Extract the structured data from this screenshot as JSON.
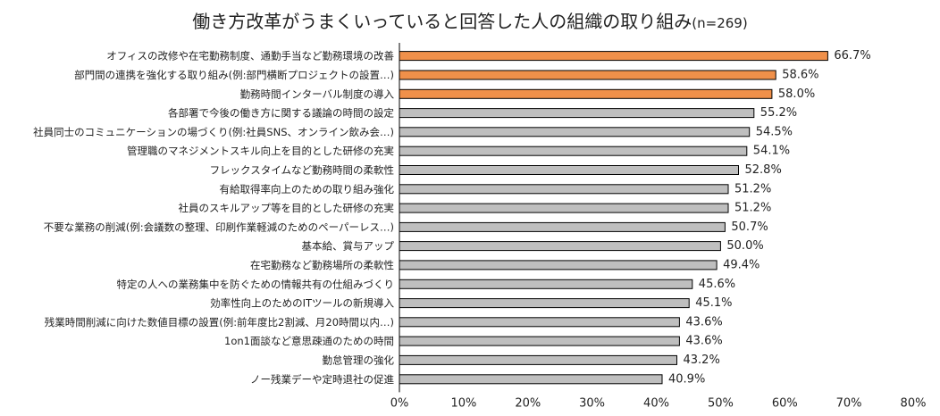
{
  "chart_data": {
    "type": "bar",
    "orientation": "horizontal",
    "title": "働き方改革がうまくいっていると回答した人の組織の取り組み",
    "subtitle": "(n=269)",
    "categories": [
      "オフィスの改修や在宅勤務制度、通勤手当など勤務環境の改善",
      "部門間の連携を強化する取り組み(例:部門横断プロジェクトの設置…)",
      "勤務時間インターバル制度の導入",
      "各部署で今後の働き方に関する議論の時間の設定",
      "社員同士のコミュニケーションの場づくり(例:社員SNS、オンライン飲み会…)",
      "管理職のマネジメントスキル向上を目的とした研修の充実",
      "フレックスタイムなど勤務時間の柔軟性",
      "有給取得率向上のための取り組み強化",
      "社員のスキルアップ等を目的とした研修の充実",
      "不要な業務の削減(例:会議数の整理、印刷作業軽減のためのペーパーレス…)",
      "基本給、賞与アップ",
      "在宅勤務など勤務場所の柔軟性",
      "特定の人への業務集中を防ぐための情報共有の仕組みづくり",
      "効率性向上のためのITツールの新規導入",
      "残業時間削減に向けた数値目標の設置(例:前年度比2割減、月20時間以内…)",
      "1on1面談など意思疎通のための時間",
      "勤怠管理の強化",
      "ノー残業デーや定時退社の促進"
    ],
    "values": [
      66.7,
      58.6,
      58.0,
      55.2,
      54.5,
      54.1,
      52.8,
      51.2,
      51.2,
      50.7,
      50.0,
      49.4,
      45.6,
      45.1,
      43.6,
      43.6,
      43.2,
      40.9
    ],
    "value_labels": [
      "66.7%",
      "58.6%",
      "58.0%",
      "55.2%",
      "54.5%",
      "54.1%",
      "52.8%",
      "51.2%",
      "51.2%",
      "50.7%",
      "50.0%",
      "49.4%",
      "45.6%",
      "45.1%",
      "43.6%",
      "43.6%",
      "43.2%",
      "40.9%"
    ],
    "highlight_count": 3,
    "xlim": [
      0,
      80
    ],
    "x_ticks": [
      "0%",
      "10%",
      "20%",
      "30%",
      "40%",
      "50%",
      "60%",
      "70%",
      "80%"
    ],
    "colors": {
      "highlight": "#f0904a",
      "default": "#bfbfbf",
      "bar_outline": "#000000"
    },
    "grid": false
  }
}
